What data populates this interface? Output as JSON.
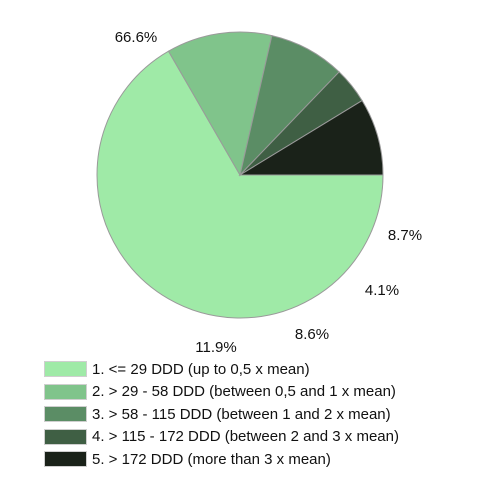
{
  "chart_data": {
    "type": "pie",
    "categories": [
      "1. <= 29 DDD (up to 0,5 x mean)",
      "2. > 29 - 58 DDD (between 0,5 and 1 x mean)",
      "3. > 58 - 115 DDD (between 1 and 2 x mean)",
      "4. > 115 - 172 DDD (between 2 and 3 x mean)",
      "5. > 172 DDD (more than 3 x mean)"
    ],
    "values": [
      66.6,
      11.9,
      8.6,
      4.1,
      8.7
    ],
    "data_labels": [
      "66.6%",
      "11.9%",
      "8.6%",
      "4.1%",
      "8.7%"
    ],
    "colors": [
      "#9feaa7",
      "#80c48b",
      "#5b8d65",
      "#3f5f44",
      "#1a2219"
    ],
    "legend_position": "bottom"
  }
}
